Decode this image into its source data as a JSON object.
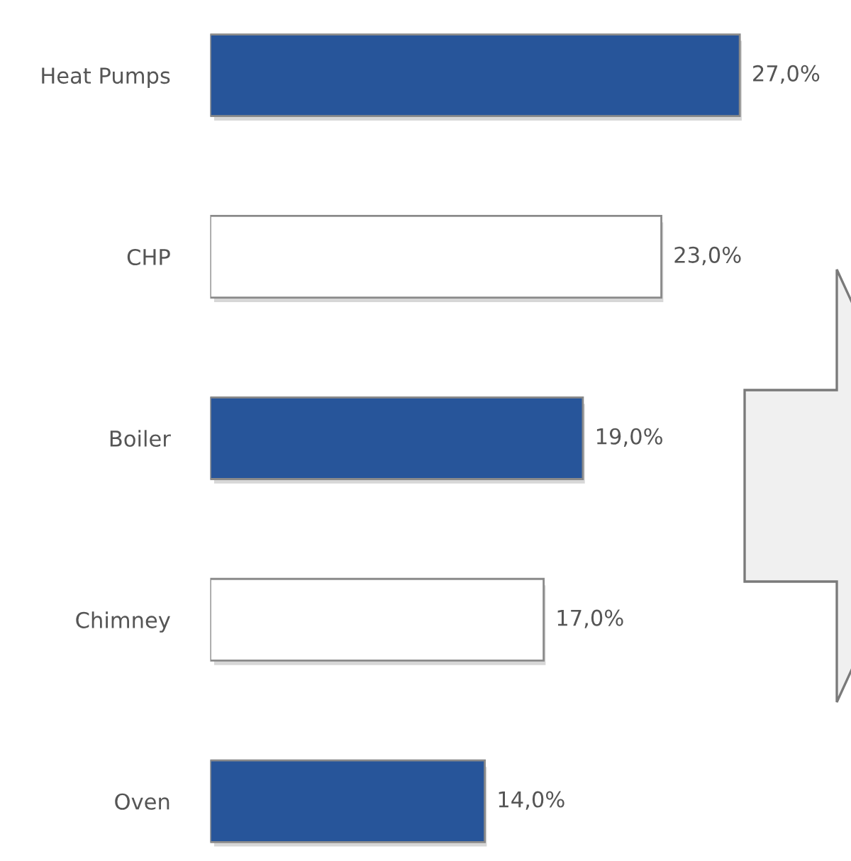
{
  "chart_data": {
    "type": "bar",
    "orientation": "horizontal",
    "categories": [
      "Heat Pumps",
      "CHP",
      "Boiler",
      "Chimney",
      "Oven"
    ],
    "values": [
      27.0,
      23.0,
      19.0,
      17.0,
      14.0
    ],
    "value_labels": [
      "27,0%",
      "23,0%",
      "19,0%",
      "17,0%",
      "14,0%"
    ],
    "colors": [
      "#27559a",
      "#ffffff",
      "#27559a",
      "#ffffff",
      "#27559a"
    ],
    "grid": false,
    "legend": false
  }
}
